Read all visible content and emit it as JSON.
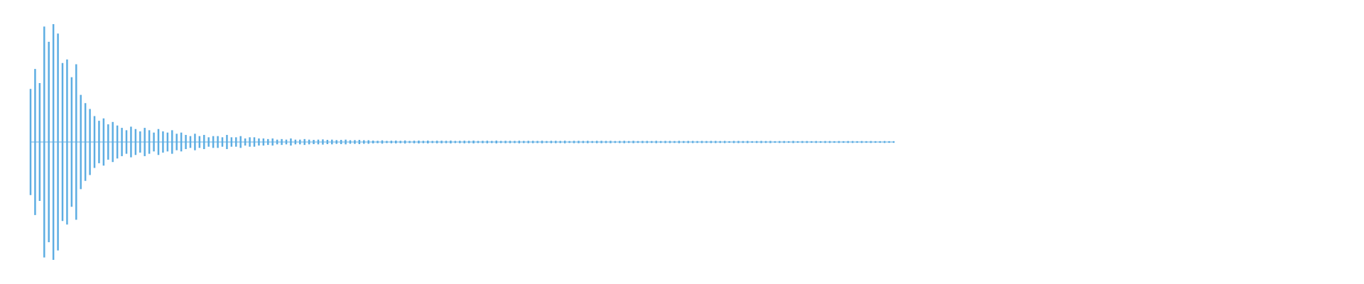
{
  "chart_data": {
    "type": "waveform",
    "color": "#5dade2",
    "ylim": [
      -1,
      1
    ],
    "values": [
      0.45,
      0.62,
      0.5,
      0.98,
      0.85,
      1.0,
      0.92,
      0.67,
      0.7,
      0.55,
      0.66,
      0.4,
      0.33,
      0.28,
      0.22,
      0.18,
      0.2,
      0.15,
      0.17,
      0.14,
      0.12,
      0.1,
      0.13,
      0.11,
      0.09,
      0.12,
      0.1,
      0.08,
      0.11,
      0.09,
      0.08,
      0.1,
      0.07,
      0.08,
      0.06,
      0.05,
      0.07,
      0.05,
      0.06,
      0.04,
      0.05,
      0.05,
      0.04,
      0.06,
      0.04,
      0.04,
      0.05,
      0.03,
      0.04,
      0.04,
      0.03,
      0.03,
      0.025,
      0.03,
      0.02,
      0.025,
      0.02,
      0.03,
      0.02,
      0.02,
      0.025,
      0.02,
      0.018,
      0.02,
      0.022,
      0.018,
      0.02,
      0.016,
      0.018,
      0.02,
      0.015,
      0.016,
      0.018,
      0.015,
      0.015,
      0.012,
      0.01,
      0.014,
      0.009,
      0.011,
      0.012,
      0.01,
      0.013,
      0.009,
      0.011,
      0.012,
      0.01,
      0.012,
      0.009,
      0.011,
      0.011,
      0.01,
      0.012,
      0.009,
      0.01,
      0.011,
      0.01,
      0.012,
      0.009,
      0.01,
      0.011,
      0.009,
      0.012,
      0.009,
      0.01,
      0.01,
      0.009,
      0.011,
      0.009,
      0.01,
      0.01,
      0.009,
      0.011,
      0.008,
      0.01,
      0.01,
      0.009,
      0.011,
      0.008,
      0.01,
      0.01,
      0.009,
      0.01,
      0.008,
      0.01,
      0.01,
      0.009,
      0.01,
      0.008,
      0.009,
      0.01,
      0.008,
      0.01,
      0.008,
      0.009,
      0.009,
      0.008,
      0.01,
      0.008,
      0.009,
      0.009,
      0.008,
      0.01,
      0.008,
      0.009,
      0.009,
      0.008,
      0.009,
      0.008,
      0.009,
      0.009,
      0.008,
      0.009,
      0.007,
      0.009,
      0.009,
      0.008,
      0.009,
      0.007,
      0.008,
      0.009,
      0.008,
      0.009,
      0.007,
      0.008,
      0.008,
      0.007,
      0.009,
      0.007,
      0.008,
      0.008,
      0.007,
      0.008,
      0.007,
      0.008,
      0.008,
      0.007,
      0.008,
      0.007,
      0.008,
      0.008,
      0.007,
      0.008,
      0.007,
      0.008,
      0.007,
      0.007,
      0.008,
      0.007,
      0.007
    ]
  }
}
